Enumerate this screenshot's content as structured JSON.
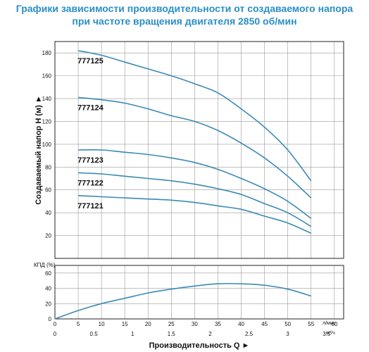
{
  "title_line1": "Графики зависимости производительности от создаваемого напора",
  "title_line2": "при частоте вращения двигателя 2850 об/мин",
  "colors": {
    "title": "#2a8fc6",
    "curve": "#3a8ab5",
    "grid": "#9a9a9a"
  },
  "chart_data": [
    {
      "type": "line",
      "title": "",
      "xlabel": "Производительность Q ►",
      "ylabel": "Создаваемый напор H (м) ►",
      "xunit_top": "л/мин",
      "xunit_bottom": "м³/ч",
      "x_ticks_lpm": [
        0,
        5,
        10,
        15,
        20,
        25,
        30,
        35,
        40,
        45,
        50,
        55,
        60
      ],
      "x_ticks_m3h": [
        "0",
        "0.5",
        "1",
        "1.5",
        "2",
        "2.5",
        "3",
        "3.5"
      ],
      "xlim": [
        0,
        62
      ],
      "ylim": [
        0,
        190
      ],
      "y_ticks": [
        20,
        40,
        60,
        80,
        100,
        120,
        140,
        160,
        180
      ],
      "grid": true,
      "series": [
        {
          "name": "777125",
          "x": [
            5,
            10,
            15,
            20,
            25,
            30,
            35,
            40,
            45,
            50,
            55
          ],
          "y": [
            182,
            178,
            172,
            166,
            160,
            153,
            145,
            131,
            115,
            95,
            68
          ]
        },
        {
          "name": "777124",
          "x": [
            5,
            10,
            15,
            20,
            25,
            30,
            35,
            40,
            45,
            50,
            55
          ],
          "y": [
            141,
            139,
            136,
            131,
            125,
            120,
            112,
            101,
            88,
            72,
            53
          ]
        },
        {
          "name": "777123",
          "x": [
            5,
            10,
            15,
            20,
            25,
            30,
            35,
            40,
            45,
            50,
            55
          ],
          "y": [
            95,
            95,
            93,
            91,
            88,
            84,
            78,
            70,
            61,
            50,
            35
          ]
        },
        {
          "name": "777122",
          "x": [
            5,
            10,
            15,
            20,
            25,
            30,
            35,
            40,
            45,
            50,
            55
          ],
          "y": [
            75,
            74,
            72,
            70,
            68,
            65,
            61,
            56,
            48,
            40,
            28
          ]
        },
        {
          "name": "777121",
          "x": [
            5,
            10,
            15,
            20,
            25,
            30,
            35,
            40,
            45,
            50,
            55
          ],
          "y": [
            55,
            54,
            53,
            52,
            51,
            49,
            46,
            43,
            37,
            31,
            22
          ]
        }
      ]
    },
    {
      "type": "line",
      "title": "",
      "ylabel": "КПД (%)",
      "ylim": [
        0,
        70
      ],
      "y_ticks": [
        0,
        20,
        40,
        60
      ],
      "xlim": [
        0,
        62
      ],
      "grid": true,
      "series": [
        {
          "name": "",
          "x": [
            0,
            5,
            10,
            15,
            20,
            25,
            30,
            35,
            40,
            45,
            50,
            55
          ],
          "y": [
            0,
            11,
            20,
            27,
            34,
            39,
            43,
            46,
            46,
            44,
            39,
            30
          ]
        }
      ]
    }
  ]
}
